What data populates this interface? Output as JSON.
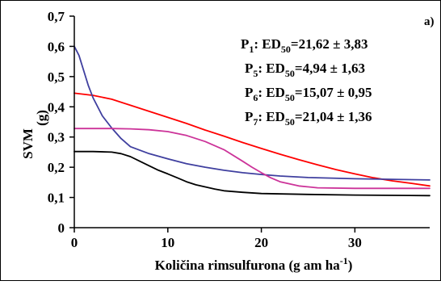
{
  "chart_data": {
    "type": "line",
    "panel_label": "a)",
    "xlabel": "Količina rimsulfurona (g am ha",
    "xlabel_sup": "-1",
    "xlabel_tail": ")",
    "ylabel": "SVM",
    "ylabel_unit": "(g)",
    "xlim": [
      0,
      38
    ],
    "ylim": [
      0,
      0.7
    ],
    "x_ticks": [
      {
        "value": 0,
        "label": "0"
      },
      {
        "value": 10,
        "label": "10"
      },
      {
        "value": 20,
        "label": "20"
      },
      {
        "value": 30,
        "label": "30"
      }
    ],
    "y_ticks": [
      {
        "value": 0,
        "label": "0"
      },
      {
        "value": 0.1,
        "label": "0,1"
      },
      {
        "value": 0.2,
        "label": "0,2"
      },
      {
        "value": 0.3,
        "label": "0,3"
      },
      {
        "value": 0.4,
        "label": "0,4"
      },
      {
        "value": 0.5,
        "label": "0,5"
      },
      {
        "value": 0.6,
        "label": "0,6"
      },
      {
        "value": 0.7,
        "label": "0,7"
      }
    ],
    "annotations": [
      {
        "prefix": "P",
        "sub1": "1",
        "mid": ": ED",
        "sub2": "50",
        "value": "=21,62 ± 3,83"
      },
      {
        "prefix": "P",
        "sub1": "5",
        "mid": ": ED",
        "sub2": "50",
        "value": "=4,94 ± 1,63"
      },
      {
        "prefix": "P",
        "sub1": "6",
        "mid": ": ED",
        "sub2": "50",
        "value": "=15,07 ± 0,95"
      },
      {
        "prefix": "P",
        "sub1": "7",
        "mid": ": ED",
        "sub2": "50",
        "value": "=21,04 ± 1,36"
      }
    ],
    "series": [
      {
        "color": "#ff0000",
        "x": [
          0,
          2,
          4,
          6,
          8,
          10,
          12,
          14,
          16,
          18,
          20,
          22,
          24,
          26,
          28,
          30,
          32,
          34,
          36,
          38
        ],
        "y": [
          0.445,
          0.438,
          0.425,
          0.405,
          0.385,
          0.365,
          0.345,
          0.323,
          0.303,
          0.282,
          0.262,
          0.243,
          0.225,
          0.208,
          0.192,
          0.178,
          0.165,
          0.155,
          0.147,
          0.138
        ]
      },
      {
        "color": "#3f3f9f",
        "x": [
          0,
          0.5,
          1,
          1.5,
          2,
          3,
          4,
          5,
          6,
          8,
          10,
          12,
          14,
          16,
          18,
          20,
          22,
          25,
          30,
          38
        ],
        "y": [
          0.6,
          0.57,
          0.52,
          0.47,
          0.43,
          0.37,
          0.33,
          0.295,
          0.268,
          0.245,
          0.228,
          0.212,
          0.2,
          0.19,
          0.182,
          0.176,
          0.171,
          0.166,
          0.162,
          0.158
        ]
      },
      {
        "color": "#cc3399",
        "x": [
          0,
          2,
          4,
          6,
          8,
          10,
          12,
          14,
          16,
          18,
          19,
          20,
          21,
          22,
          24,
          26,
          30,
          38
        ],
        "y": [
          0.328,
          0.328,
          0.328,
          0.327,
          0.324,
          0.318,
          0.305,
          0.285,
          0.258,
          0.22,
          0.2,
          0.182,
          0.165,
          0.152,
          0.138,
          0.132,
          0.13,
          0.13
        ]
      },
      {
        "color": "#000000",
        "x": [
          0,
          2,
          4,
          5,
          6,
          7,
          8,
          9,
          10,
          11,
          12,
          13,
          14,
          15,
          16,
          18,
          20,
          25,
          30,
          38
        ],
        "y": [
          0.252,
          0.252,
          0.25,
          0.245,
          0.235,
          0.22,
          0.205,
          0.19,
          0.178,
          0.165,
          0.152,
          0.142,
          0.135,
          0.128,
          0.122,
          0.117,
          0.113,
          0.11,
          0.108,
          0.106
        ]
      }
    ]
  }
}
